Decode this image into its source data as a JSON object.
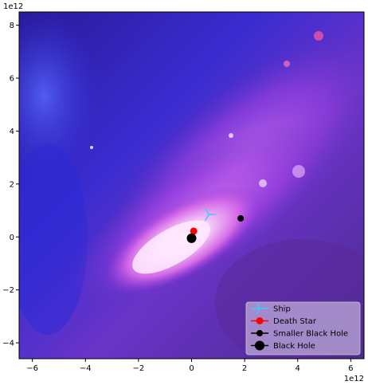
{
  "chart_data": {
    "type": "scatter",
    "title": "",
    "xlabel": "",
    "ylabel": "",
    "x_offset_label": "1e12",
    "y_offset_label": "1e12",
    "xlim": [
      -6.5,
      6.5
    ],
    "ylim": [
      -4.6,
      8.5
    ],
    "xticks": [
      -6,
      -4,
      -2,
      0,
      2,
      4,
      6
    ],
    "yticks": [
      -4,
      -2,
      0,
      2,
      4,
      6,
      8
    ],
    "xtick_labels": [
      "−6",
      "−4",
      "−2",
      "0",
      "2",
      "4",
      "6"
    ],
    "ytick_labels": [
      "−4",
      "−2",
      "0",
      "2",
      "4",
      "6",
      "8"
    ],
    "background": "galaxy-image",
    "grid": false,
    "legend_position": "lower-right",
    "series": [
      {
        "name": "Ship",
        "marker": "tri-right",
        "color": "#3fc8ff",
        "x": 0.65,
        "y": 0.85
      },
      {
        "name": "Death Star",
        "marker": "circle",
        "color": "#ff0000",
        "x": 0.08,
        "y": 0.22
      },
      {
        "name": "Smaller Black Hole",
        "marker": "circle-small",
        "color": "#000000",
        "x": 1.85,
        "y": 0.7
      },
      {
        "name": "Black Hole",
        "marker": "circle-large",
        "color": "#000000",
        "x": 0.0,
        "y": -0.05
      }
    ]
  }
}
